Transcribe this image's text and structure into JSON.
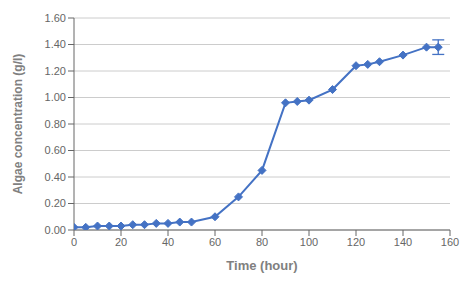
{
  "chart_data": {
    "type": "line",
    "x": [
      0,
      5,
      10,
      15,
      20,
      25,
      30,
      35,
      40,
      45,
      50,
      60,
      70,
      80,
      90,
      95,
      100,
      110,
      120,
      125,
      130,
      140,
      150,
      155
    ],
    "values": [
      0.02,
      0.02,
      0.03,
      0.03,
      0.03,
      0.04,
      0.04,
      0.05,
      0.05,
      0.06,
      0.06,
      0.1,
      0.25,
      0.45,
      0.96,
      0.97,
      0.98,
      1.06,
      1.24,
      1.25,
      1.27,
      1.32,
      1.38,
      1.38
    ],
    "error_y": [
      null,
      null,
      null,
      null,
      null,
      null,
      null,
      null,
      null,
      null,
      null,
      null,
      null,
      null,
      null,
      null,
      null,
      null,
      null,
      null,
      null,
      null,
      null,
      0.055
    ],
    "color": "#4472C4",
    "marker": "diamond",
    "xlabel": "Time (hour)",
    "ylabel": "Algae concentration (g/l)",
    "xlim": [
      0,
      160
    ],
    "ylim": [
      0.0,
      1.6
    ],
    "xticks": [
      0,
      20,
      40,
      60,
      80,
      100,
      120,
      140,
      160
    ],
    "yticks": [
      {
        "value": 0.0,
        "label": "0.00"
      },
      {
        "value": 0.2,
        "label": "0.20"
      },
      {
        "value": 0.4,
        "label": "0.40"
      },
      {
        "value": 0.6,
        "label": "0.60"
      },
      {
        "value": 0.8,
        "label": "0.80"
      },
      {
        "value": 1.0,
        "label": "1.00"
      },
      {
        "value": 1.2,
        "label": "1.20"
      },
      {
        "value": 1.4,
        "label": "1.40"
      },
      {
        "value": 1.6,
        "label": "1.60"
      }
    ],
    "grid": true
  }
}
